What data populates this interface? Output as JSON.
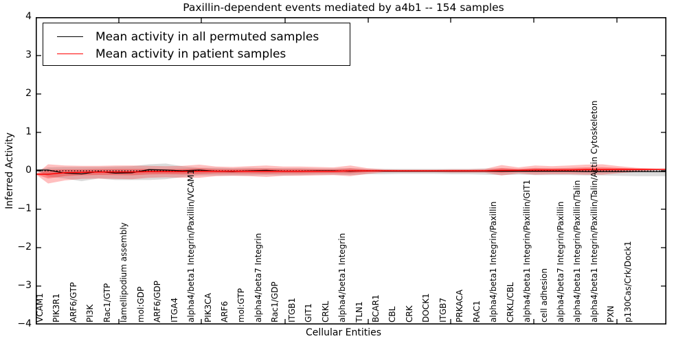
{
  "title": "Paxillin-dependent events mediated by a4b1 -- 154 samples",
  "legend": {
    "entries": [
      {
        "label": "Mean activity in all permuted samples",
        "color": "#000000"
      },
      {
        "label": "Mean activity in patient samples",
        "color": "#ff0000"
      }
    ]
  },
  "axes": {
    "ylabel": "Inferred Activity",
    "xlabel": "Cellular Entities",
    "ytick_labels": [
      "4",
      "3",
      "2",
      "1",
      "0",
      "−1",
      "−2",
      "−3",
      "−4"
    ]
  },
  "chart_data": {
    "type": "line",
    "title": "Paxillin-dependent events mediated by a4b1 -- 154 samples",
    "xlabel": "Cellular Entities",
    "ylabel": "Inferred Activity",
    "ylim": [
      -4,
      4
    ],
    "yticks": [
      4,
      3,
      2,
      1,
      0,
      -1,
      -2,
      -3,
      -4
    ],
    "zero_reference_line": true,
    "legend_position": "upper left",
    "grid": false,
    "categories": [
      "VCAM1",
      "PIK3R1",
      "ARF6/GTP",
      "PI3K",
      "Rac1/GTP",
      "lamellipodium assembly",
      "mol:GDP",
      "ARF6/GDP",
      "ITGA4",
      "alpha4/beta1 Integrin/Paxillin/VCAM1",
      "PIK3CA",
      "ARF6",
      "mol:GTP",
      "alpha4/beta7 Integrin",
      "Rac1/GDP",
      "ITGB1",
      "GIT1",
      "CRKL",
      "alpha4/beta1 Integrin",
      "TLN1",
      "BCAR1",
      "CBL",
      "CRK",
      "DOCK1",
      "ITGB7",
      "PRKACA",
      "RAC1",
      "alpha4/beta1 Integrin/Paxillin",
      "CRKL/CBL",
      "alpha4/beta1 Integrin/Paxillin/GIT1",
      "cell adhesion",
      "alpha4/beta7 Integrin/Paxillin",
      "alpha4/beta1 Integrin/Paxillin/Talin",
      "alpha4/beta1 Integrin/Paxillin/Talin/Actin Cytoskeleton",
      "PXN",
      "p130Cas/Crk/Dock1"
    ],
    "series": [
      {
        "name": "Mean activity in all permuted samples",
        "color": "#000000",
        "values": [
          0.02,
          -0.06,
          -0.08,
          -0.02,
          -0.06,
          -0.05,
          0.03,
          0.02,
          0.0,
          0.02,
          -0.01,
          -0.02,
          0.0,
          0.01,
          -0.01,
          -0.01,
          0.0,
          0.0,
          -0.01,
          0.0,
          -0.01,
          -0.01,
          -0.01,
          -0.01,
          -0.01,
          -0.01,
          -0.01,
          -0.01,
          -0.01,
          -0.01,
          -0.01,
          -0.01,
          -0.02,
          -0.02,
          -0.02,
          -0.02
        ]
      },
      {
        "name": "Mean activity in patient samples",
        "color": "#ff0000",
        "values": [
          -0.09,
          -0.05,
          -0.04,
          -0.03,
          -0.03,
          -0.03,
          -0.02,
          -0.02,
          -0.02,
          -0.01,
          -0.01,
          -0.01,
          -0.01,
          -0.01,
          -0.01,
          -0.01,
          -0.01,
          -0.01,
          0.0,
          0.0,
          0.0,
          0.0,
          0.0,
          0.0,
          0.0,
          0.0,
          0.0,
          0.01,
          0.01,
          0.02,
          0.02,
          0.02,
          0.03,
          0.03,
          0.04,
          0.04
        ]
      }
    ],
    "bands": [
      {
        "name": "permuted samples spread",
        "color": "#000000",
        "opacity": 0.14,
        "upper": [
          0.09,
          0.1,
          0.1,
          0.1,
          0.11,
          0.12,
          0.17,
          0.19,
          0.12,
          0.08,
          0.08,
          0.07,
          0.08,
          0.07,
          0.07,
          0.07,
          0.06,
          0.06,
          0.07,
          0.05,
          0.05,
          0.05,
          0.05,
          0.05,
          0.05,
          0.05,
          0.06,
          0.06,
          0.05,
          0.06,
          0.06,
          0.06,
          0.06,
          0.06,
          0.05,
          0.05
        ],
        "lower": [
          -0.15,
          -0.2,
          -0.27,
          -0.2,
          -0.24,
          -0.24,
          -0.24,
          -0.22,
          -0.16,
          -0.12,
          -0.12,
          -0.12,
          -0.12,
          -0.11,
          -0.12,
          -0.11,
          -0.1,
          -0.1,
          -0.11,
          -0.09,
          -0.09,
          -0.08,
          -0.08,
          -0.08,
          -0.09,
          -0.09,
          -0.1,
          -0.11,
          -0.1,
          -0.11,
          -0.11,
          -0.11,
          -0.12,
          -0.12,
          -0.13,
          -0.14
        ]
      },
      {
        "name": "patient samples spread",
        "color": "#ff0000",
        "opacity": 0.25,
        "upper": [
          0.17,
          0.14,
          0.13,
          0.13,
          0.14,
          0.14,
          0.13,
          0.12,
          0.13,
          0.16,
          0.11,
          0.1,
          0.12,
          0.14,
          0.11,
          0.11,
          0.1,
          0.09,
          0.14,
          0.07,
          0.04,
          0.03,
          0.03,
          0.03,
          0.04,
          0.04,
          0.05,
          0.15,
          0.09,
          0.14,
          0.12,
          0.14,
          0.16,
          0.17,
          0.12,
          0.08
        ],
        "lower": [
          -0.33,
          -0.25,
          -0.21,
          -0.2,
          -0.21,
          -0.22,
          -0.18,
          -0.17,
          -0.18,
          -0.18,
          -0.14,
          -0.13,
          -0.14,
          -0.16,
          -0.13,
          -0.13,
          -0.12,
          -0.11,
          -0.14,
          -0.08,
          -0.04,
          -0.04,
          -0.04,
          -0.04,
          -0.05,
          -0.05,
          -0.05,
          -0.12,
          -0.07,
          -0.1,
          -0.09,
          -0.09,
          -0.1,
          -0.1,
          -0.06,
          -0.03
        ]
      }
    ],
    "colors": {
      "frame": "#000000",
      "zero_line": "#000000",
      "background": "#ffffff"
    }
  }
}
